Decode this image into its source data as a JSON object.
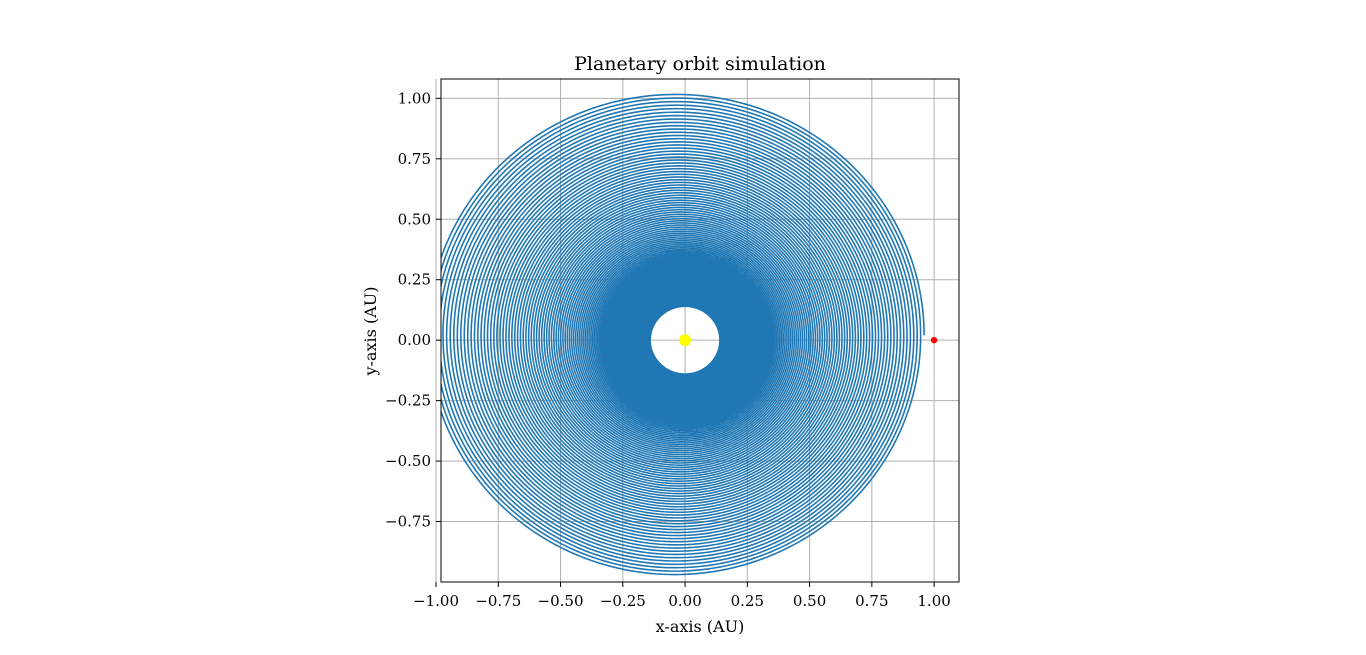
{
  "chart_data": {
    "type": "line",
    "title": "Planetary orbit simulation",
    "xlabel": "x-axis (AU)",
    "ylabel": "y-axis (AU)",
    "xlim": [
      -0.98,
      1.1
    ],
    "ylim": [
      -1.0,
      1.08
    ],
    "grid": true,
    "xticks": [
      -1.0,
      -0.75,
      -0.5,
      -0.25,
      0.0,
      0.25,
      0.5,
      0.75,
      1.0
    ],
    "xtick_labels": [
      "−1.00",
      "−0.75",
      "−0.50",
      "−0.25",
      "0.00",
      "0.25",
      "0.50",
      "0.75",
      "1.00"
    ],
    "yticks": [
      1.0,
      0.75,
      0.5,
      0.25,
      0.0,
      -0.25,
      -0.5,
      -0.75
    ],
    "ytick_labels": [
      "1.00",
      "0.75",
      "0.50",
      "0.25",
      "0.00",
      "−0.25",
      "−0.50",
      "−0.75"
    ],
    "series": [
      {
        "kind": "spiral-orbit",
        "color": "#1f77b4",
        "start_point": [
          1.0,
          0.0
        ],
        "start_radius": 1.0,
        "end_radius": 0.14,
        "center": [
          0.0,
          0.0
        ],
        "revolutions": 140
      },
      {
        "kind": "marker",
        "role": "sun",
        "x": 0.0,
        "y": 0.0,
        "color": "#ffff00"
      },
      {
        "kind": "marker",
        "role": "planet",
        "x": 1.0,
        "y": 0.0,
        "color": "#ff0000"
      }
    ]
  }
}
